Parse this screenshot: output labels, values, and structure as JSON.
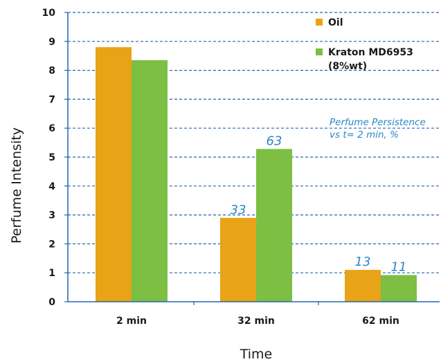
{
  "chart_data": {
    "type": "bar",
    "title": "",
    "xlabel": "Time",
    "ylabel": "Perfume Intensity",
    "categories": [
      "2 min",
      "32 min",
      "62 min"
    ],
    "ylim": [
      0,
      10
    ],
    "yticks": [
      0,
      1,
      2,
      3,
      4,
      5,
      6,
      7,
      8,
      9,
      10
    ],
    "grid": true,
    "series": [
      {
        "name": "Oil",
        "color": "#e8a317",
        "values": [
          8.8,
          2.9,
          1.1
        ],
        "labels": [
          "",
          "33",
          "13"
        ]
      },
      {
        "name": "Kraton MD6953",
        "name_line2": "(8%wt)",
        "color": "#7cbf42",
        "values": [
          8.35,
          5.28,
          0.92
        ],
        "labels": [
          "",
          "63",
          "11"
        ]
      }
    ],
    "legend_placement": "top-right",
    "annotation": {
      "line1": "Perfume Persistence",
      "line2": "vs t= 2 min, %"
    },
    "colors": {
      "grid": "#1f67b1",
      "axis": "#1f67b1",
      "annotation": "#2b86c5"
    }
  }
}
